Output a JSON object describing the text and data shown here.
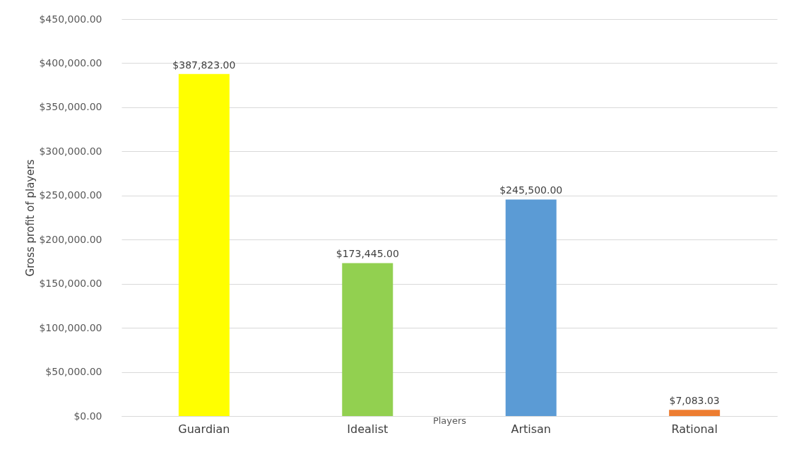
{
  "chart_data": {
    "type": "bar",
    "xlabel": "Players",
    "ylabel": "Gross profit of players",
    "categories": [
      "Guardian",
      "Idealist",
      "Artisan",
      "Rational"
    ],
    "values": [
      387823.0,
      173445.0,
      245500.0,
      7083.03
    ],
    "colors": [
      "#ffff00",
      "#92d050",
      "#5b9bd5",
      "#ed7d31"
    ],
    "value_labels": [
      "$387,823.00",
      "$173,445.00",
      "$245,500.00",
      "$7,083.03"
    ],
    "ylim": [
      0,
      450000
    ],
    "yticks": [
      {
        "value": 0,
        "label": "$0.00"
      },
      {
        "value": 50000,
        "label": "$50,000.00"
      },
      {
        "value": 100000,
        "label": "$100,000.00"
      },
      {
        "value": 150000,
        "label": "$150,000.00"
      },
      {
        "value": 200000,
        "label": "$200,000.00"
      },
      {
        "value": 250000,
        "label": "$250,000.00"
      },
      {
        "value": 300000,
        "label": "$300,000.00"
      },
      {
        "value": 350000,
        "label": "$350,000.00"
      },
      {
        "value": 400000,
        "label": "$400,000.00"
      },
      {
        "value": 450000,
        "label": "$450,000.00"
      }
    ],
    "grid": "y"
  }
}
